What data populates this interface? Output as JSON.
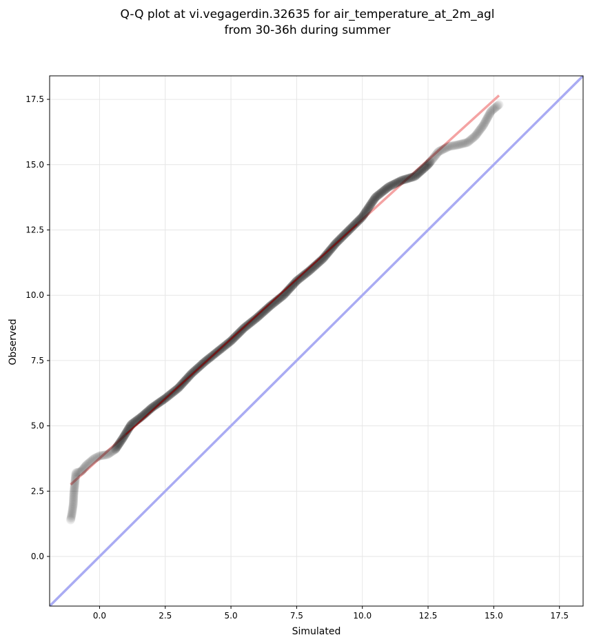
{
  "chart_data": {
    "type": "scatter",
    "title_lines": [
      "Q-Q plot at vi.vegagerdin.32635 for air_temperature_at_2m_agl",
      "from 30-36h during summer"
    ],
    "xlabel": "Simulated",
    "ylabel": "Observed",
    "xlim": [
      -1.9,
      18.4
    ],
    "ylim": [
      -1.9,
      18.4
    ],
    "xticks": [
      0.0,
      2.5,
      5.0,
      7.5,
      10.0,
      12.5,
      15.0,
      17.5
    ],
    "yticks": [
      0.0,
      2.5,
      5.0,
      7.5,
      10.0,
      12.5,
      15.0,
      17.5
    ],
    "xtick_labels": [
      "0.0",
      "2.5",
      "5.0",
      "7.5",
      "10.0",
      "12.5",
      "15.0",
      "17.5"
    ],
    "ytick_labels": [
      "0.0",
      "2.5",
      "5.0",
      "7.5",
      "10.0",
      "12.5",
      "15.0",
      "17.5"
    ],
    "grid": true,
    "colors": {
      "points": "#000000",
      "fit_line": "#f4a3a3",
      "fit_line_inner": "#8b0000",
      "identity_line": "#a9abf3",
      "grid": "#e6e6e6"
    },
    "identity_line": {
      "x": [
        -1.9,
        18.4
      ],
      "y": [
        -1.9,
        18.4
      ]
    },
    "fit_line": {
      "x": [
        -1.1,
        15.2
      ],
      "y": [
        2.75,
        17.65
      ]
    },
    "quantile_curve": [
      [
        -1.1,
        1.4
      ],
      [
        -1.05,
        1.65
      ],
      [
        -1.0,
        2.0
      ],
      [
        -0.98,
        2.4
      ],
      [
        -0.9,
        3.2
      ],
      [
        -0.7,
        3.25
      ],
      [
        -0.5,
        3.5
      ],
      [
        -0.2,
        3.75
      ],
      [
        0.0,
        3.85
      ],
      [
        0.3,
        3.9
      ],
      [
        0.6,
        4.1
      ],
      [
        0.9,
        4.55
      ],
      [
        1.2,
        5.05
      ],
      [
        1.6,
        5.35
      ],
      [
        2.0,
        5.7
      ],
      [
        2.5,
        6.05
      ],
      [
        3.0,
        6.45
      ],
      [
        3.5,
        7.0
      ],
      [
        4.0,
        7.45
      ],
      [
        4.5,
        7.85
      ],
      [
        5.0,
        8.25
      ],
      [
        5.5,
        8.75
      ],
      [
        6.0,
        9.15
      ],
      [
        6.5,
        9.6
      ],
      [
        7.0,
        10.0
      ],
      [
        7.5,
        10.55
      ],
      [
        8.0,
        10.95
      ],
      [
        8.5,
        11.4
      ],
      [
        9.0,
        12.0
      ],
      [
        9.5,
        12.5
      ],
      [
        10.0,
        13.0
      ],
      [
        10.5,
        13.75
      ],
      [
        11.0,
        14.15
      ],
      [
        11.5,
        14.4
      ],
      [
        12.0,
        14.55
      ],
      [
        12.5,
        15.0
      ],
      [
        12.9,
        15.5
      ],
      [
        13.3,
        15.7
      ],
      [
        13.6,
        15.75
      ],
      [
        14.0,
        15.85
      ],
      [
        14.3,
        16.1
      ],
      [
        14.6,
        16.5
      ],
      [
        14.9,
        17.05
      ],
      [
        15.2,
        17.3
      ]
    ]
  }
}
